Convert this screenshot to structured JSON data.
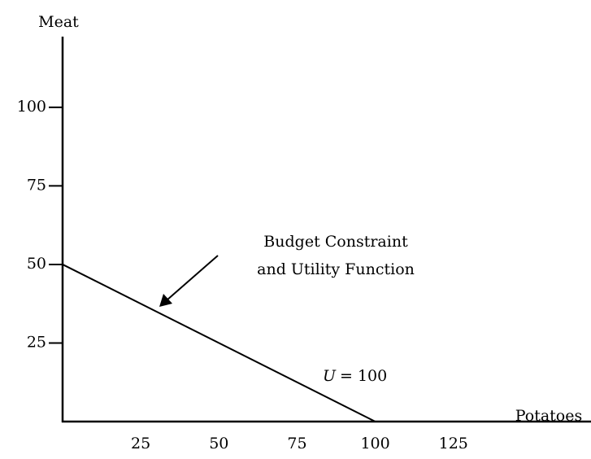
{
  "chart_data": {
    "type": "line",
    "x_label": "Potatoes",
    "y_label": "Meat",
    "x": [
      0,
      100
    ],
    "values": [
      50,
      0
    ],
    "color": "#000000",
    "xlim": [
      0,
      169
    ],
    "ylim": [
      0,
      122.5
    ],
    "xticks": [
      25,
      50,
      75,
      100,
      125
    ],
    "yticks": [
      25,
      50,
      75,
      100
    ],
    "annotations": {
      "budget": [
        "Budget Constraint",
        "and Utility Function"
      ],
      "utility": {
        "variable": "U",
        "rest": "= 100"
      }
    }
  }
}
